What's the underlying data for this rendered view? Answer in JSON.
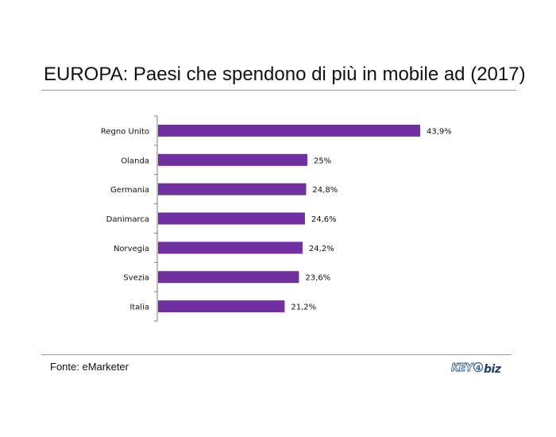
{
  "title": "EUROPA: Paesi che spendono di più in mobile ad (2017)",
  "footer": {
    "source": "Fonte: eMarketer",
    "logo_text": "KEY4biz"
  },
  "colors": {
    "bar": "#7030a0",
    "axis": "#7f7f7f",
    "text": "#111111"
  },
  "chart_data": {
    "type": "bar",
    "orientation": "horizontal",
    "title": "EUROPA: Paesi che spendono di più in mobile ad (2017)",
    "categories": [
      "Regno Unito",
      "Olanda",
      "Germania",
      "Danimarca",
      "Norvegia",
      "Svezia",
      "Italia"
    ],
    "values": [
      43.9,
      25,
      24.8,
      24.6,
      24.2,
      23.6,
      21.2
    ],
    "value_labels": [
      "43,9%",
      "25%",
      "24,8%",
      "24,6%",
      "24,2%",
      "23,6%",
      "21,2%"
    ],
    "unit": "%",
    "xlim": [
      0,
      43.9
    ],
    "grid": false,
    "legend": "none"
  }
}
